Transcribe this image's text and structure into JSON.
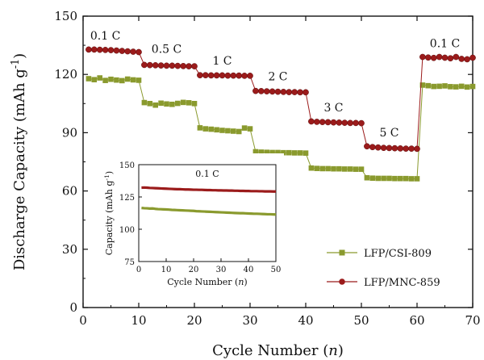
{
  "chart_data": {
    "type": "scatter",
    "xlabel": "Cycle Number (n)",
    "ylabel": "Discharge Capacity (mAh g-1)",
    "xlim": [
      0,
      70
    ],
    "ylim": [
      0,
      150
    ],
    "x_ticks": [
      "0",
      "10",
      "20",
      "30",
      "40",
      "50",
      "60",
      "70"
    ],
    "y_ticks": [
      "0",
      "30",
      "60",
      "90",
      "120",
      "150"
    ],
    "grid": false,
    "legend_position": "bottom-right",
    "rate_labels": [
      {
        "text": "0.1 C",
        "x": 4,
        "y": 138
      },
      {
        "text": "0.5 C",
        "x": 15,
        "y": 131
      },
      {
        "text": "1 C",
        "x": 25,
        "y": 125
      },
      {
        "text": "2 C",
        "x": 35,
        "y": 117
      },
      {
        "text": "3 C",
        "x": 45,
        "y": 101
      },
      {
        "text": "5 C",
        "x": 55,
        "y": 88
      },
      {
        "text": "0.1 C",
        "x": 65,
        "y": 134
      }
    ],
    "series": [
      {
        "name": "LFP/CSI-809",
        "marker": "square",
        "color": "#8a9a2e",
        "x": [
          1,
          2,
          3,
          4,
          5,
          6,
          7,
          8,
          9,
          10,
          11,
          12,
          13,
          14,
          15,
          16,
          17,
          18,
          19,
          20,
          21,
          22,
          23,
          24,
          25,
          26,
          27,
          28,
          29,
          30,
          31,
          32,
          33,
          34,
          35,
          36,
          37,
          38,
          39,
          40,
          41,
          42,
          43,
          44,
          45,
          46,
          47,
          48,
          49,
          50,
          51,
          52,
          53,
          54,
          55,
          56,
          57,
          58,
          59,
          60,
          61,
          62,
          63,
          64,
          65,
          66,
          67,
          68,
          69,
          70
        ],
        "y": [
          117.8,
          117.3,
          118.2,
          116.9,
          117.5,
          117.1,
          116.8,
          117.6,
          117.2,
          117.0,
          105.5,
          105.0,
          104.2,
          105.2,
          104.8,
          104.6,
          105.1,
          105.6,
          105.4,
          105.0,
          92.5,
          92.0,
          91.8,
          91.5,
          91.2,
          91.0,
          90.8,
          90.6,
          92.4,
          92.0,
          80.2,
          80.0,
          79.9,
          79.8,
          79.8,
          79.7,
          79.7,
          79.6,
          79.6,
          79.5,
          71.8,
          71.6,
          71.5,
          71.5,
          71.4,
          71.4,
          71.3,
          71.3,
          71.2,
          71.2,
          66.8,
          66.6,
          66.5,
          66.5,
          66.5,
          66.4,
          66.4,
          66.4,
          66.3,
          66.3,
          114.5,
          114.2,
          113.8,
          113.9,
          114.1,
          113.7,
          113.6,
          113.9,
          113.5,
          113.8
        ]
      },
      {
        "name": "LFP/MNC-859",
        "marker": "circle",
        "color": "#9b1b1b",
        "x": [
          1,
          2,
          3,
          4,
          5,
          6,
          7,
          8,
          9,
          10,
          11,
          12,
          13,
          14,
          15,
          16,
          17,
          18,
          19,
          20,
          21,
          22,
          23,
          24,
          25,
          26,
          27,
          28,
          29,
          30,
          31,
          32,
          33,
          34,
          35,
          36,
          37,
          38,
          39,
          40,
          41,
          42,
          43,
          44,
          45,
          46,
          47,
          48,
          49,
          50,
          51,
          52,
          53,
          54,
          55,
          56,
          57,
          58,
          59,
          60,
          61,
          62,
          63,
          64,
          65,
          66,
          67,
          68,
          69,
          70
        ],
        "y": [
          132.8,
          132.8,
          132.7,
          132.6,
          132.5,
          132.3,
          132.1,
          131.9,
          131.7,
          131.5,
          124.9,
          124.8,
          124.7,
          124.6,
          124.5,
          124.5,
          124.4,
          124.3,
          124.2,
          124.2,
          119.6,
          119.6,
          119.5,
          119.5,
          119.5,
          119.4,
          119.4,
          119.4,
          119.3,
          119.3,
          111.5,
          111.4,
          111.3,
          111.2,
          111.1,
          111.0,
          110.9,
          110.9,
          110.8,
          110.8,
          95.8,
          95.6,
          95.5,
          95.4,
          95.3,
          95.2,
          95.1,
          95.0,
          95.0,
          94.9,
          83.0,
          82.6,
          82.4,
          82.2,
          82.1,
          82.0,
          81.9,
          81.8,
          81.8,
          81.7,
          129.0,
          128.7,
          128.5,
          129.0,
          128.6,
          128.3,
          129.0,
          128.0,
          127.8,
          128.6
        ]
      }
    ],
    "inset": {
      "type": "line",
      "title": "0.1 C",
      "xlabel": "Cycle Number (n)",
      "ylabel": "Capacity (mAh g-1)",
      "xlim": [
        0,
        50
      ],
      "ylim": [
        75,
        150
      ],
      "x_ticks": [
        "0",
        "10",
        "20",
        "30",
        "40",
        "50"
      ],
      "y_ticks": [
        "75",
        "100",
        "125",
        "150"
      ],
      "series": [
        {
          "name": "LFP/CSI-809",
          "color": "#8a9a2e",
          "x": [
            1,
            2,
            3,
            4,
            5,
            6,
            7,
            8,
            9,
            10,
            11,
            12,
            13,
            14,
            15,
            16,
            17,
            18,
            19,
            20,
            21,
            22,
            23,
            24,
            25,
            26,
            27,
            28,
            29,
            30,
            31,
            32,
            33,
            34,
            35,
            36,
            37,
            38,
            39,
            40,
            41,
            42,
            43,
            44,
            45,
            46,
            47,
            48,
            49,
            50
          ],
          "y": [
            116.5,
            116.3,
            116.2,
            116.0,
            116.1,
            115.8,
            115.6,
            115.5,
            115.4,
            115.3,
            115.2,
            115.0,
            114.9,
            114.8,
            114.7,
            114.6,
            114.5,
            114.4,
            114.3,
            114.2,
            114.0,
            113.9,
            113.8,
            113.7,
            113.6,
            113.5,
            113.4,
            113.3,
            113.2,
            113.1,
            113.0,
            112.9,
            112.8,
            112.7,
            112.6,
            112.5,
            112.4,
            112.4,
            112.3,
            112.2,
            112.1,
            112.0,
            112.0,
            111.9,
            111.8,
            111.7,
            111.6,
            111.6,
            111.5,
            111.4
          ]
        },
        {
          "name": "LFP/MNC-859",
          "color": "#9b1b1b",
          "x": [
            1,
            2,
            3,
            4,
            5,
            6,
            7,
            8,
            9,
            10,
            11,
            12,
            13,
            14,
            15,
            16,
            17,
            18,
            19,
            20,
            21,
            22,
            23,
            24,
            25,
            26,
            27,
            28,
            29,
            30,
            31,
            32,
            33,
            34,
            35,
            36,
            37,
            38,
            39,
            40,
            41,
            42,
            43,
            44,
            45,
            46,
            47,
            48,
            49,
            50
          ],
          "y": [
            132.2,
            132.3,
            132.2,
            132.0,
            131.9,
            131.8,
            131.7,
            131.6,
            131.5,
            131.4,
            131.3,
            131.2,
            131.1,
            131.0,
            131.0,
            130.9,
            130.8,
            130.8,
            130.7,
            130.6,
            130.6,
            130.5,
            130.5,
            130.4,
            130.3,
            130.3,
            130.2,
            130.2,
            130.1,
            130.1,
            130.0,
            130.0,
            129.9,
            129.9,
            129.8,
            129.8,
            129.7,
            129.7,
            129.6,
            129.6,
            129.5,
            129.5,
            129.5,
            129.4,
            129.4,
            129.3,
            129.3,
            129.3,
            129.2,
            129.2
          ]
        }
      ]
    }
  }
}
